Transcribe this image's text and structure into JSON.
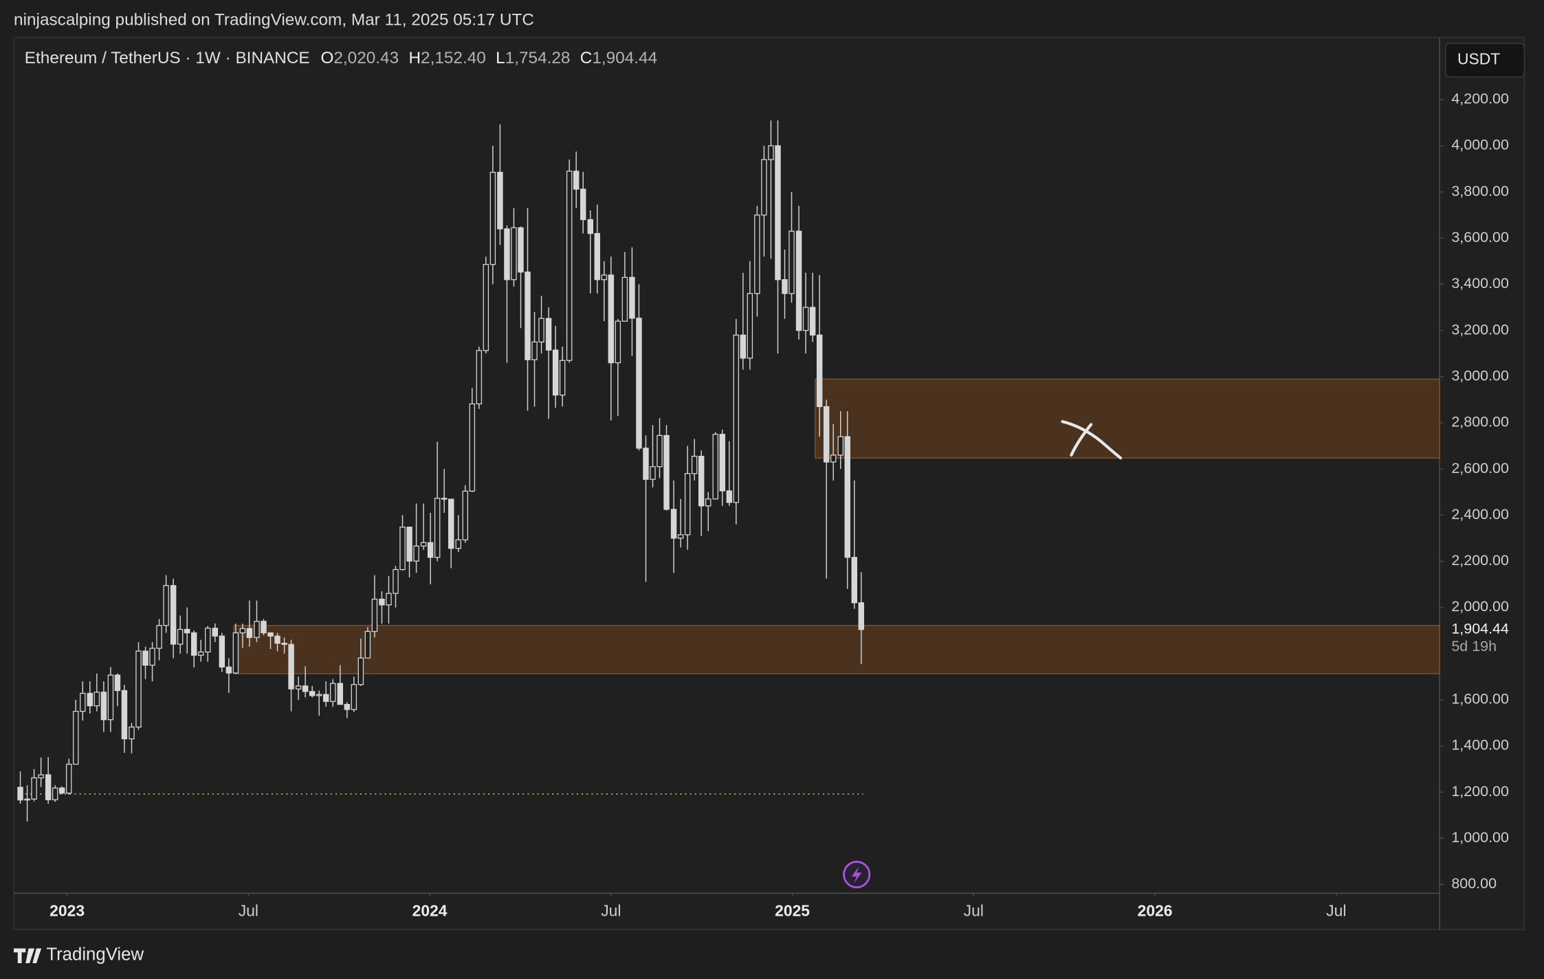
{
  "header": {
    "published": "ninjascalping published on TradingView.com, Mar 11, 2025 05:17 UTC"
  },
  "footer": {
    "brand": "TradingView"
  },
  "chart_data": {
    "type": "candlestick",
    "symbol": "Ethereum / TetherUS · 1W · BINANCE",
    "legend_values": [
      {
        "key": "O",
        "text": "2,020.43"
      },
      {
        "key": "H",
        "text": "2,152.40"
      },
      {
        "key": "L",
        "text": "1,754.28"
      },
      {
        "key": "C",
        "text": "1,904.44"
      }
    ],
    "currency": "USDT",
    "last_price": {
      "value": 1904.44,
      "label": "1,904.44"
    },
    "countdown": "5d 19h",
    "up_color": "#d6d6d6",
    "down_color": "#d6d6d6",
    "grid": false,
    "xlim": [
      2022.853,
      2026.785
    ],
    "xticks": [
      2023,
      {
        "value": 2023.5,
        "label": "Jul"
      },
      2024,
      {
        "value": 2024.5,
        "label": "Jul"
      },
      2025,
      {
        "value": 2025.5,
        "label": "Jul"
      },
      2026,
      {
        "value": 2026.5,
        "label": "Jul"
      }
    ],
    "ylim": [
      762,
      4469
    ],
    "yticks": [
      {
        "value": 800,
        "label": "800.00"
      },
      {
        "value": 1000,
        "label": "1,000.00"
      },
      {
        "value": 1200,
        "label": "1,200.00"
      },
      {
        "value": 1400,
        "label": "1,400.00"
      },
      {
        "value": 1600,
        "label": "1,600.00"
      },
      {
        "value": 2000,
        "label": "2,000.00"
      },
      {
        "value": 2200,
        "label": "2,200.00"
      },
      {
        "value": 2400,
        "label": "2,400.00"
      },
      {
        "value": 2600,
        "label": "2,600.00"
      },
      {
        "value": 2800,
        "label": "2,800.00"
      },
      {
        "value": 3000,
        "label": "3,000.00"
      },
      {
        "value": 3200,
        "label": "3,200.00"
      },
      {
        "value": 3400,
        "label": "3,400.00"
      },
      {
        "value": 3600,
        "label": "3,600.00"
      },
      {
        "value": 3800,
        "label": "3,800.00"
      },
      {
        "value": 4000,
        "label": "4,000.00"
      },
      {
        "value": 4200,
        "label": "4,200.00"
      }
    ],
    "zones": [
      {
        "x_start": 2023.46,
        "low": 1713,
        "high": 1922,
        "color": "#4a321f"
      },
      {
        "x_start": 2025.063,
        "low": 2647,
        "high": 2989,
        "color": "#4a321f"
      }
    ],
    "hline": {
      "value": 1192,
      "color": "#c9a04a"
    },
    "x": [
      2022.871,
      2022.89,
      2022.909,
      2022.928,
      2022.948,
      2022.967,
      2022.986,
      2023.005,
      2023.024,
      2023.043,
      2023.063,
      2023.082,
      2023.101,
      2023.12,
      2023.139,
      2023.158,
      2023.178,
      2023.197,
      2023.216,
      2023.235,
      2023.254,
      2023.273,
      2023.293,
      2023.312,
      2023.331,
      2023.35,
      2023.369,
      2023.388,
      2023.408,
      2023.427,
      2023.446,
      2023.465,
      2023.484,
      2023.503,
      2023.523,
      2023.542,
      2023.561,
      2023.58,
      2023.599,
      2023.618,
      2023.638,
      2023.657,
      2023.676,
      2023.695,
      2023.714,
      2023.733,
      2023.753,
      2023.772,
      2023.791,
      2023.81,
      2023.829,
      2023.848,
      2023.868,
      2023.887,
      2023.906,
      2023.925,
      2023.944,
      2023.963,
      2023.983,
      2024.002,
      2024.021,
      2024.04,
      2024.059,
      2024.079,
      2024.098,
      2024.117,
      2024.136,
      2024.155,
      2024.174,
      2024.194,
      2024.213,
      2024.232,
      2024.251,
      2024.27,
      2024.289,
      2024.308,
      2024.328,
      2024.347,
      2024.366,
      2024.385,
      2024.404,
      2024.423,
      2024.443,
      2024.462,
      2024.481,
      2024.5,
      2024.519,
      2024.538,
      2024.558,
      2024.577,
      2024.596,
      2024.615,
      2024.634,
      2024.653,
      2024.673,
      2024.692,
      2024.711,
      2024.73,
      2024.749,
      2024.768,
      2024.788,
      2024.807,
      2024.826,
      2024.845,
      2024.864,
      2024.883,
      2024.903,
      2024.922,
      2024.941,
      2024.96,
      2024.979,
      2024.998,
      2025.018,
      2025.037,
      2025.056,
      2025.075,
      2025.094,
      2025.113,
      2025.133,
      2025.152,
      2025.171,
      2025.19
    ],
    "open": [
      1221,
      1166,
      1170,
      1262,
      1275,
      1167,
      1218,
      1196,
      1321,
      1550,
      1628,
      1574,
      1633,
      1514,
      1707,
      1640,
      1431,
      1482,
      1811,
      1750,
      1823,
      1922,
      2095,
      1841,
      1905,
      1890,
      1793,
      1807,
      1910,
      1876,
      1742,
      1716,
      1890,
      1909,
      1870,
      1940,
      1890,
      1876,
      1845,
      1840,
      1647,
      1660,
      1636,
      1618,
      1623,
      1593,
      1671,
      1580,
      1558,
      1666,
      1781,
      1896,
      2036,
      2011,
      2061,
      2164,
      2348,
      2201,
      2266,
      2281,
      2217,
      2473,
      2469,
      2256,
      2293,
      2504,
      2882,
      3113,
      3486,
      3885,
      3640,
      3420,
      3645,
      3453,
      3073,
      3150,
      3252,
      3115,
      2920,
      3070,
      3890,
      3812,
      3680,
      3620,
      3420,
      3440,
      3060,
      3240,
      3430,
      3253,
      2690,
      2555,
      2610,
      2745,
      2425,
      2300,
      2315,
      2580,
      2655,
      2440,
      2470,
      2750,
      2505,
      2455,
      3180,
      3080,
      3360,
      3700,
      3940,
      4000,
      3420,
      3360,
      3630,
      3200,
      3300,
      3180,
      2870,
      2630,
      2660,
      2740,
      2217,
      2020.43
    ],
    "high": [
      1290,
      1230,
      1300,
      1350,
      1352,
      1230,
      1225,
      1345,
      1600,
      1680,
      1680,
      1714,
      1680,
      1742,
      1715,
      1665,
      1500,
      1850,
      1830,
      1850,
      1950,
      2140,
      2125,
      1965,
      2000,
      1900,
      1860,
      1920,
      1931,
      1890,
      1780,
      1930,
      1930,
      2030,
      2030,
      1950,
      1890,
      1890,
      1870,
      1860,
      1700,
      1745,
      1660,
      1640,
      1680,
      1690,
      1750,
      1590,
      1700,
      1865,
      1915,
      2140,
      2070,
      2136,
      2180,
      2400,
      2350,
      2450,
      2450,
      2410,
      2718,
      2600,
      2470,
      2400,
      2530,
      2950,
      3130,
      3520,
      4000,
      4093,
      3655,
      3730,
      3650,
      3730,
      3280,
      3350,
      3300,
      3220,
      3130,
      3940,
      3975,
      3887,
      3720,
      3745,
      3500,
      3520,
      3250,
      3540,
      3560,
      3400,
      2745,
      2790,
      2820,
      2790,
      2550,
      2470,
      2700,
      2730,
      2680,
      2500,
      2760,
      2770,
      2720,
      3250,
      3450,
      3500,
      3740,
      4000,
      4110,
      4110,
      3550,
      3800,
      3740,
      3450,
      3450,
      3440,
      2900,
      2795,
      2850,
      2850,
      2550,
      2152.4
    ],
    "low": [
      1150,
      1073,
      1160,
      1222,
      1150,
      1158,
      1190,
      1190,
      1320,
      1510,
      1540,
      1550,
      1461,
      1460,
      1572,
      1370,
      1368,
      1470,
      1690,
      1680,
      1771,
      1890,
      1780,
      1800,
      1800,
      1740,
      1765,
      1765,
      1850,
      1720,
      1630,
      1712,
      1825,
      1830,
      1850,
      1880,
      1820,
      1810,
      1800,
      1550,
      1600,
      1610,
      1610,
      1531,
      1570,
      1570,
      1581,
      1521,
      1547,
      1660,
      1780,
      1870,
      1930,
      1930,
      2000,
      2160,
      2130,
      2150,
      2250,
      2100,
      2200,
      2410,
      2170,
      2240,
      2280,
      2500,
      2860,
      3100,
      3400,
      3570,
      3060,
      3390,
      3210,
      2852,
      2870,
      3100,
      2817,
      2865,
      2870,
      3060,
      3730,
      3620,
      3360,
      3360,
      3240,
      2810,
      2830,
      3240,
      3090,
      2680,
      2111,
      2520,
      2560,
      2420,
      2150,
      2260,
      2250,
      2550,
      2310,
      2330,
      2470,
      2440,
      2440,
      2360,
      3030,
      3030,
      3260,
      3520,
      3510,
      3100,
      3250,
      3320,
      3160,
      3100,
      3150,
      2740,
      2125,
      2550,
      2600,
      2080,
      1994,
      1754.28
    ],
    "close": [
      1166,
      1170,
      1262,
      1275,
      1167,
      1218,
      1196,
      1321,
      1550,
      1628,
      1574,
      1633,
      1514,
      1707,
      1640,
      1431,
      1482,
      1811,
      1750,
      1823,
      1922,
      2095,
      1841,
      1905,
      1890,
      1793,
      1807,
      1910,
      1876,
      1742,
      1716,
      1890,
      1909,
      1870,
      1940,
      1890,
      1876,
      1845,
      1840,
      1647,
      1660,
      1636,
      1618,
      1623,
      1593,
      1671,
      1580,
      1558,
      1666,
      1781,
      1896,
      2036,
      2011,
      2061,
      2164,
      2348,
      2201,
      2266,
      2281,
      2217,
      2473,
      2469,
      2256,
      2293,
      2504,
      2882,
      3113,
      3486,
      3885,
      3640,
      3420,
      3645,
      3453,
      3073,
      3150,
      3252,
      3115,
      2920,
      3070,
      3890,
      3812,
      3680,
      3620,
      3420,
      3440,
      3060,
      3240,
      3430,
      3253,
      2690,
      2555,
      2610,
      2745,
      2425,
      2300,
      2315,
      2580,
      2655,
      2440,
      2470,
      2750,
      2505,
      2455,
      3180,
      3080,
      3360,
      3700,
      3940,
      4000,
      3420,
      3360,
      3630,
      3200,
      3300,
      3180,
      2870,
      2630,
      2660,
      2740,
      2217,
      2020.43,
      1904.44
    ]
  }
}
